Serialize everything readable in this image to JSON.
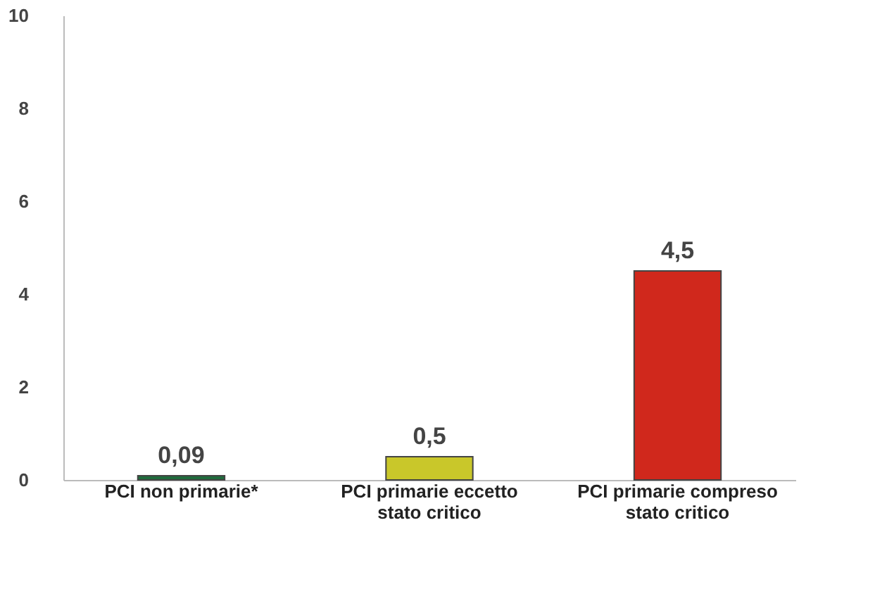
{
  "chart_data": {
    "type": "bar",
    "categories": [
      "PCI non primarie*",
      "PCI primarie eccetto\nstato critico",
      "PCI primarie compreso\nstato critico"
    ],
    "values": [
      0.09,
      0.5,
      4.5
    ],
    "colors": [
      "#1f6b3c",
      "#c9c72a",
      "#d0281c"
    ],
    "value_labels": [
      "0,09",
      "0,5",
      "4,5"
    ],
    "ylim": [
      0,
      10
    ],
    "yticks": [
      0,
      2,
      4,
      6,
      8,
      10
    ],
    "grid": false
  }
}
